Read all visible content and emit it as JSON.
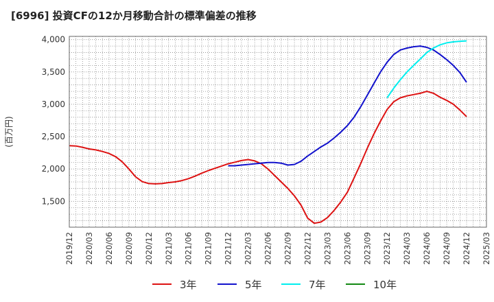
{
  "title": "[6996]  投資CFの12か月移動合計の標準偏差の推移",
  "chart_data": {
    "type": "line",
    "title": "[6996]  投資CFの12か月移動合計の標準偏差の推移",
    "ylabel": "(百万円)",
    "xlabel": "",
    "ylim": [
      1100,
      4050
    ],
    "yticks": [
      1500,
      2000,
      2500,
      3000,
      3500,
      4000
    ],
    "ytick_labels": [
      "1,500",
      "2,000",
      "2,500",
      "3,000",
      "3,500",
      "4,000"
    ],
    "xticks": [
      "2019/12",
      "2020/03",
      "2020/06",
      "2020/09",
      "2020/12",
      "2021/03",
      "2021/06",
      "2021/09",
      "2021/12",
      "2022/03",
      "2022/06",
      "2022/09",
      "2022/12",
      "2023/03",
      "2023/06",
      "2023/09",
      "2023/12",
      "2024/03",
      "2024/06",
      "2024/09",
      "2024/12",
      "2025/03"
    ],
    "grid": true,
    "legend_position": "bottom",
    "series": [
      {
        "name": "3年",
        "color": "#dd1111",
        "points": [
          [
            "2019/12",
            2360
          ],
          [
            "2020/01",
            2355
          ],
          [
            "2020/02",
            2335
          ],
          [
            "2020/03",
            2310
          ],
          [
            "2020/04",
            2295
          ],
          [
            "2020/05",
            2270
          ],
          [
            "2020/06",
            2240
          ],
          [
            "2020/07",
            2190
          ],
          [
            "2020/08",
            2110
          ],
          [
            "2020/09",
            2000
          ],
          [
            "2020/10",
            1880
          ],
          [
            "2020/11",
            1805
          ],
          [
            "2020/12",
            1775
          ],
          [
            "2021/01",
            1770
          ],
          [
            "2021/02",
            1775
          ],
          [
            "2021/03",
            1790
          ],
          [
            "2021/04",
            1800
          ],
          [
            "2021/05",
            1820
          ],
          [
            "2021/06",
            1850
          ],
          [
            "2021/07",
            1890
          ],
          [
            "2021/08",
            1935
          ],
          [
            "2021/09",
            1975
          ],
          [
            "2021/10",
            2010
          ],
          [
            "2021/11",
            2045
          ],
          [
            "2021/12",
            2080
          ],
          [
            "2022/01",
            2105
          ],
          [
            "2022/02",
            2130
          ],
          [
            "2022/03",
            2145
          ],
          [
            "2022/04",
            2125
          ],
          [
            "2022/05",
            2080
          ],
          [
            "2022/06",
            2000
          ],
          [
            "2022/07",
            1900
          ],
          [
            "2022/08",
            1800
          ],
          [
            "2022/09",
            1700
          ],
          [
            "2022/10",
            1585
          ],
          [
            "2022/11",
            1440
          ],
          [
            "2022/12",
            1240
          ],
          [
            "2023/01",
            1160
          ],
          [
            "2023/02",
            1180
          ],
          [
            "2023/03",
            1250
          ],
          [
            "2023/04",
            1360
          ],
          [
            "2023/05",
            1490
          ],
          [
            "2023/06",
            1640
          ],
          [
            "2023/07",
            1860
          ],
          [
            "2023/08",
            2080
          ],
          [
            "2023/09",
            2320
          ],
          [
            "2023/10",
            2540
          ],
          [
            "2023/11",
            2740
          ],
          [
            "2023/12",
            2920
          ],
          [
            "2024/01",
            3040
          ],
          [
            "2024/02",
            3100
          ],
          [
            "2024/03",
            3130
          ],
          [
            "2024/04",
            3150
          ],
          [
            "2024/05",
            3170
          ],
          [
            "2024/06",
            3200
          ],
          [
            "2024/07",
            3170
          ],
          [
            "2024/08",
            3110
          ],
          [
            "2024/09",
            3060
          ],
          [
            "2024/10",
            3000
          ],
          [
            "2024/11",
            2910
          ],
          [
            "2024/12",
            2810
          ]
        ]
      },
      {
        "name": "5年",
        "color": "#1111cc",
        "points": [
          [
            "2021/12",
            2050
          ],
          [
            "2022/01",
            2050
          ],
          [
            "2022/02",
            2060
          ],
          [
            "2022/03",
            2070
          ],
          [
            "2022/04",
            2080
          ],
          [
            "2022/05",
            2090
          ],
          [
            "2022/06",
            2100
          ],
          [
            "2022/07",
            2100
          ],
          [
            "2022/08",
            2090
          ],
          [
            "2022/09",
            2060
          ],
          [
            "2022/10",
            2070
          ],
          [
            "2022/11",
            2120
          ],
          [
            "2022/12",
            2200
          ],
          [
            "2023/01",
            2270
          ],
          [
            "2023/02",
            2340
          ],
          [
            "2023/03",
            2400
          ],
          [
            "2023/04",
            2480
          ],
          [
            "2023/05",
            2570
          ],
          [
            "2023/06",
            2670
          ],
          [
            "2023/07",
            2800
          ],
          [
            "2023/08",
            2960
          ],
          [
            "2023/09",
            3140
          ],
          [
            "2023/10",
            3320
          ],
          [
            "2023/11",
            3500
          ],
          [
            "2023/12",
            3650
          ],
          [
            "2024/01",
            3770
          ],
          [
            "2024/02",
            3840
          ],
          [
            "2024/03",
            3870
          ],
          [
            "2024/04",
            3890
          ],
          [
            "2024/05",
            3900
          ],
          [
            "2024/06",
            3880
          ],
          [
            "2024/07",
            3840
          ],
          [
            "2024/08",
            3770
          ],
          [
            "2024/09",
            3690
          ],
          [
            "2024/10",
            3600
          ],
          [
            "2024/11",
            3490
          ],
          [
            "2024/12",
            3340
          ]
        ]
      },
      {
        "name": "7年",
        "color": "#00eeee",
        "points": [
          [
            "2023/12",
            3100
          ],
          [
            "2024/01",
            3250
          ],
          [
            "2024/02",
            3380
          ],
          [
            "2024/03",
            3500
          ],
          [
            "2024/04",
            3600
          ],
          [
            "2024/05",
            3700
          ],
          [
            "2024/06",
            3800
          ],
          [
            "2024/07",
            3870
          ],
          [
            "2024/08",
            3920
          ],
          [
            "2024/09",
            3950
          ],
          [
            "2024/10",
            3965
          ],
          [
            "2024/11",
            3975
          ],
          [
            "2024/12",
            3980
          ]
        ]
      },
      {
        "name": "10年",
        "color": "#118811",
        "points": []
      }
    ]
  }
}
